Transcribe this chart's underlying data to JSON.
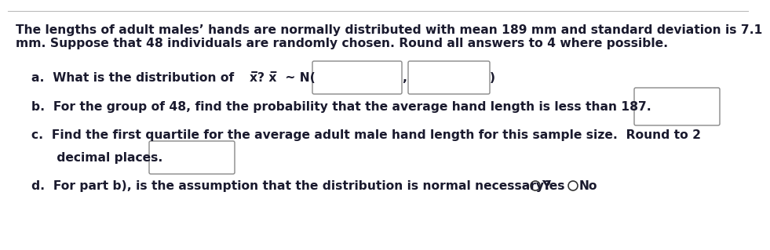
{
  "background_color": "#ffffff",
  "text_color": "#1a1a2e",
  "para_line1": "The lengths of adult males’ hands are normally distributed with mean 189 mm and standard deviation is 7.1",
  "para_line2": "mm. Suppose that 48 individuals are randomly chosen. Round all answers to 4 where possible.",
  "line_a_pre": "a.  What is the distribution of ",
  "line_a_xbar": "x̅? x̅",
  "line_a_tilde": " ~ N(",
  "line_a_end": "          ,                    )",
  "line_b": "b.  For the group of 48, find the probability that the average hand length is less than 187.",
  "line_c1": "c.  Find the first quartile for the average adult male hand length for this sample size.  Round to 2",
  "line_c2": "      decimal places.",
  "line_d": "d.  For part b), is the assumption that the distribution is normal necessary?",
  "yes_text": "Yes",
  "no_text": "No",
  "font_size": 11.2,
  "box_edge_color": "#888888",
  "box_face_color": "#ffffff",
  "circle_color": "#333333",
  "top_border_color": "#bbbbbb"
}
